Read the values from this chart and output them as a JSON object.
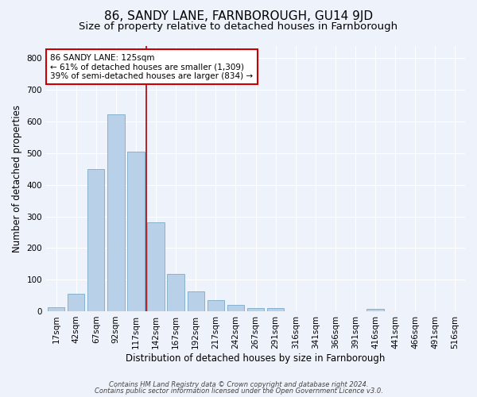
{
  "title": "86, SANDY LANE, FARNBOROUGH, GU14 9JD",
  "subtitle": "Size of property relative to detached houses in Farnborough",
  "xlabel": "Distribution of detached houses by size in Farnborough",
  "ylabel": "Number of detached properties",
  "bar_labels": [
    "17sqm",
    "42sqm",
    "67sqm",
    "92sqm",
    "117sqm",
    "142sqm",
    "167sqm",
    "192sqm",
    "217sqm",
    "242sqm",
    "267sqm",
    "291sqm",
    "316sqm",
    "341sqm",
    "366sqm",
    "391sqm",
    "416sqm",
    "441sqm",
    "466sqm",
    "491sqm",
    "516sqm"
  ],
  "bar_values": [
    13,
    55,
    450,
    622,
    505,
    280,
    117,
    62,
    35,
    20,
    10,
    10,
    0,
    0,
    0,
    0,
    8,
    0,
    0,
    0,
    0
  ],
  "bar_color": "#b8d0e8",
  "bar_edge_color": "#7aaac8",
  "vline_x": 4.5,
  "vline_color": "#aa0000",
  "annotation_line1": "86 SANDY LANE: 125sqm",
  "annotation_line2": "← 61% of detached houses are smaller (1,309)",
  "annotation_line3": "39% of semi-detached houses are larger (834) →",
  "annotation_box_color": "white",
  "annotation_box_edge": "#cc0000",
  "ylim": [
    0,
    840
  ],
  "yticks": [
    0,
    100,
    200,
    300,
    400,
    500,
    600,
    700,
    800
  ],
  "footer_line1": "Contains HM Land Registry data © Crown copyright and database right 2024.",
  "footer_line2": "Contains public sector information licensed under the Open Government Licence v3.0.",
  "bg_color": "#eef2fb",
  "plot_bg_color": "#eef2fb",
  "grid_color": "#ffffff",
  "title_fontsize": 11,
  "subtitle_fontsize": 9.5,
  "axis_label_fontsize": 8.5,
  "tick_fontsize": 7.5,
  "annotation_fontsize": 7.5,
  "footer_fontsize": 6
}
